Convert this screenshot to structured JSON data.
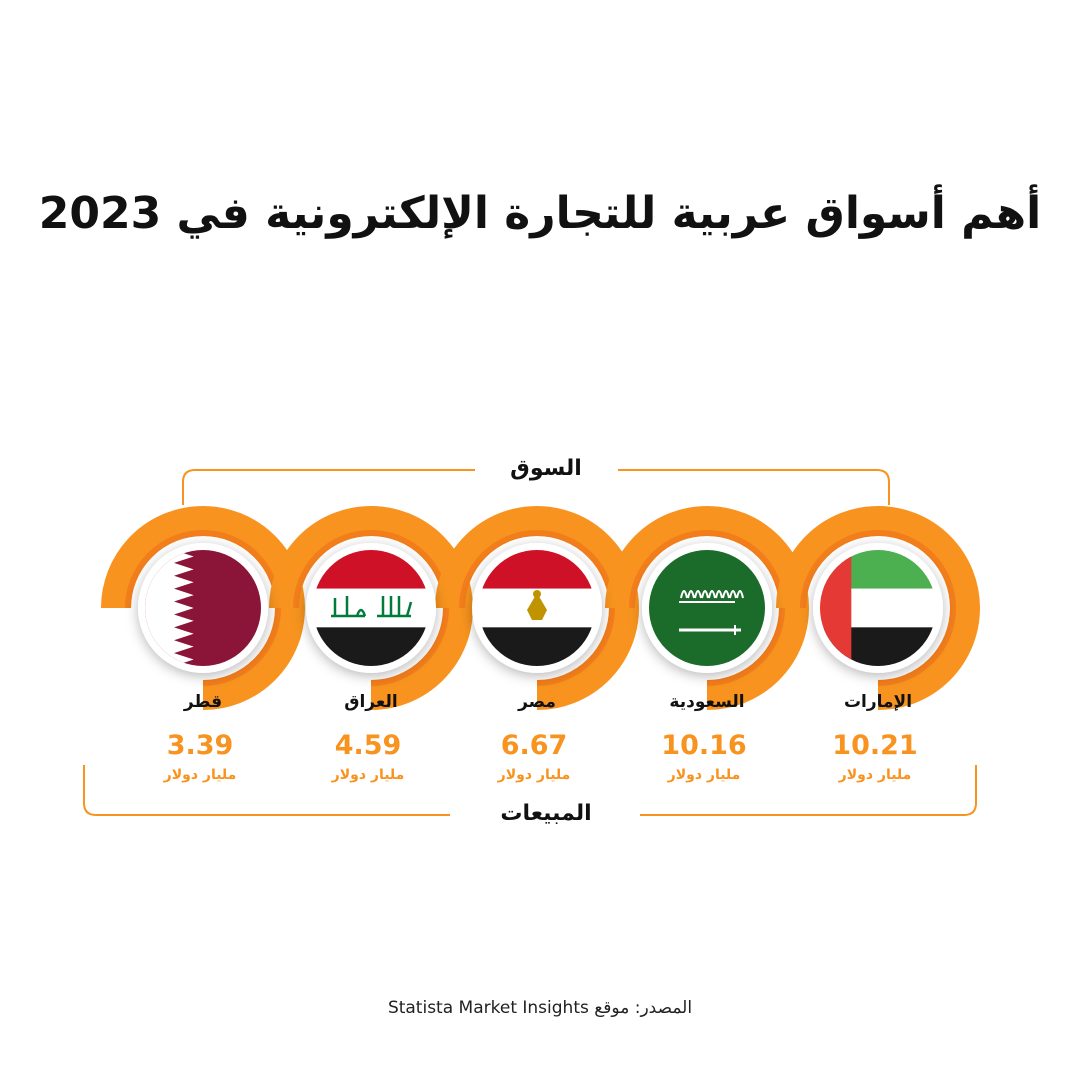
{
  "title": "أهم أسواق عربية للتجارة الإلكترونية في 2023",
  "source": "المصدر: موقع Statista Market Insights",
  "colors": {
    "accent": "#f7931e",
    "accent_dark": "#ef6b1a",
    "value_text": "#f7931e",
    "label_text": "#111111"
  },
  "chart_data": {
    "type": "bar",
    "title": "أهم أسواق عربية للتجارة الإلكترونية في 2023",
    "xlabel": "السوق",
    "ylabel": "المبيعات",
    "unit": "مليار دولار",
    "categories": [
      "الإمارات",
      "السعودية",
      "مصر",
      "العراق",
      "قطر"
    ],
    "values": [
      10.21,
      10.16,
      6.67,
      4.59,
      3.39
    ],
    "value_labels": [
      "10.21",
      "10.16",
      "6.67",
      "4.59",
      "3.39"
    ],
    "flags": [
      "uae-flag",
      "saudi-flag",
      "egypt-flag",
      "iraq-flag",
      "qatar-flag"
    ],
    "ring_fill": 0.75
  }
}
